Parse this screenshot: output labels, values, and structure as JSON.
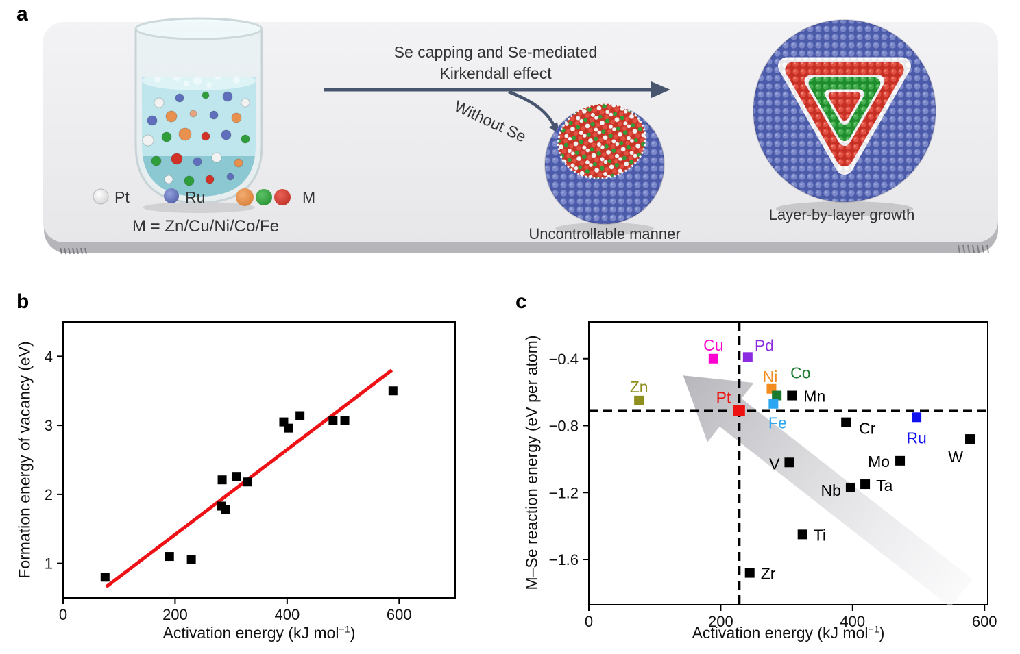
{
  "panel_a": {
    "label": "a",
    "title_line1": "Se capping and Se-mediated",
    "title_line2": "Kirkendall effect",
    "without_se": "Without Se",
    "legend": {
      "pt_label": "Pt",
      "ru_label": "Ru",
      "m_label": "M",
      "m_definition": "M = Zn/Cu/Ni/Co/Fe"
    },
    "caption_uncontrollable": "Uncontrollable manner",
    "caption_layer": "Layer-by-layer growth",
    "colors": {
      "arrow": "#47566e",
      "pt_sphere": "#f2f2f2",
      "ru_sphere": "#5a6ab8",
      "m_orange": "#e8914f",
      "m_green": "#2f9e3a",
      "m_red": "#d23227"
    }
  },
  "panel_b": {
    "label": "b"
  },
  "panel_c": {
    "label": "c"
  },
  "chart_data": [
    {
      "id": "b",
      "type": "scatter",
      "title": "",
      "xlabel_prefix": "Activation energy (kJ mol",
      "xlabel_sup": "−1",
      "xlabel_suffix": ")",
      "ylabel": "Formation energy of vacancy (eV)",
      "xlim": [
        0,
        700
      ],
      "ylim": [
        0.5,
        4.5
      ],
      "xticks": [
        0,
        200,
        400,
        600
      ],
      "xtick_labels": [
        "0",
        "200",
        "400",
        "600"
      ],
      "yticks": [
        1,
        2,
        3,
        4
      ],
      "ytick_labels": [
        "1",
        "2",
        "3",
        "4"
      ],
      "grid": false,
      "marker": "square",
      "marker_color": "#000000",
      "points": [
        [
          75,
          0.8
        ],
        [
          190,
          1.1
        ],
        [
          229,
          1.06
        ],
        [
          283,
          1.83
        ],
        [
          290,
          1.78
        ],
        [
          284,
          2.21
        ],
        [
          309,
          2.26
        ],
        [
          329,
          2.18
        ],
        [
          394,
          3.05
        ],
        [
          402,
          2.96
        ],
        [
          423,
          3.14
        ],
        [
          482,
          3.07
        ],
        [
          503,
          3.07
        ],
        [
          589,
          3.5
        ]
      ],
      "trend_line": {
        "x1": 77,
        "y1": 0.66,
        "x2": 587,
        "y2": 3.8,
        "color": "#ee1115"
      }
    },
    {
      "id": "c",
      "type": "scatter",
      "title": "",
      "xlabel_prefix": "Activation energy (kJ mol",
      "xlabel_sup": "−1",
      "xlabel_suffix": ")",
      "ylabel": "M–Se reaction energy (eV per atom)",
      "xlim": [
        0,
        605
      ],
      "ylim": [
        -1.87,
        -0.18
      ],
      "xticks": [
        0,
        200,
        400,
        600
      ],
      "xtick_labels": [
        "0",
        "200",
        "400",
        "600"
      ],
      "yticks": [
        -0.4,
        -0.8,
        -1.2,
        -1.6
      ],
      "ytick_labels": [
        "−0.4",
        "−0.8",
        "−1.2",
        "−1.6"
      ],
      "grid": false,
      "crosshair": {
        "x": 228,
        "y": -0.71,
        "style": "dashed",
        "color": "#000000"
      },
      "trend_arrow": {
        "from_x": 565,
        "from_y": -1.8,
        "to_x": 143,
        "to_y": -0.5,
        "color": "#c2c2c7"
      },
      "points": [
        {
          "element": "Cu",
          "x": 189,
          "y": -0.4,
          "color": "#ff00d0",
          "label_pos": "above"
        },
        {
          "element": "Pd",
          "x": 241,
          "y": -0.39,
          "color": "#8a2be2",
          "label_pos": "above-right"
        },
        {
          "element": "Zn",
          "x": 76,
          "y": -0.65,
          "color": "#8f8f1f",
          "label_pos": "above"
        },
        {
          "element": "Pt",
          "x": 228,
          "y": -0.71,
          "color": "#ee1111",
          "label_pos": "above-left"
        },
        {
          "element": "Ni",
          "x": 277,
          "y": -0.58,
          "color": "#f28c1e",
          "label_pos": "above"
        },
        {
          "element": "Co",
          "x": 285,
          "y": -0.62,
          "color": "#1a7a2e",
          "label_pos": "above-right"
        },
        {
          "element": "Fe",
          "x": 280,
          "y": -0.67,
          "color": "#2aa6f2",
          "label_pos": "below"
        },
        {
          "element": "Mn",
          "x": 308,
          "y": -0.62,
          "color": "#000000",
          "label_pos": "right"
        },
        {
          "element": "Cr",
          "x": 390,
          "y": -0.78,
          "color": "#000000",
          "label_pos": "right-below"
        },
        {
          "element": "Ru",
          "x": 497,
          "y": -0.75,
          "color": "#1111ee",
          "label_pos": "below"
        },
        {
          "element": "W",
          "x": 578,
          "y": -0.88,
          "color": "#000000",
          "label_pos": "below-left"
        },
        {
          "element": "V",
          "x": 304,
          "y": -1.02,
          "color": "#000000",
          "label_pos": "left"
        },
        {
          "element": "Mo",
          "x": 472,
          "y": -1.01,
          "color": "#000000",
          "label_pos": "left"
        },
        {
          "element": "Nb",
          "x": 397,
          "y": -1.17,
          "color": "#000000",
          "label_pos": "left"
        },
        {
          "element": "Ta",
          "x": 419,
          "y": -1.15,
          "color": "#000000",
          "label_pos": "right"
        },
        {
          "element": "Ti",
          "x": 324,
          "y": -1.45,
          "color": "#000000",
          "label_pos": "right"
        },
        {
          "element": "Zr",
          "x": 244,
          "y": -1.68,
          "color": "#000000",
          "label_pos": "right"
        }
      ]
    }
  ]
}
